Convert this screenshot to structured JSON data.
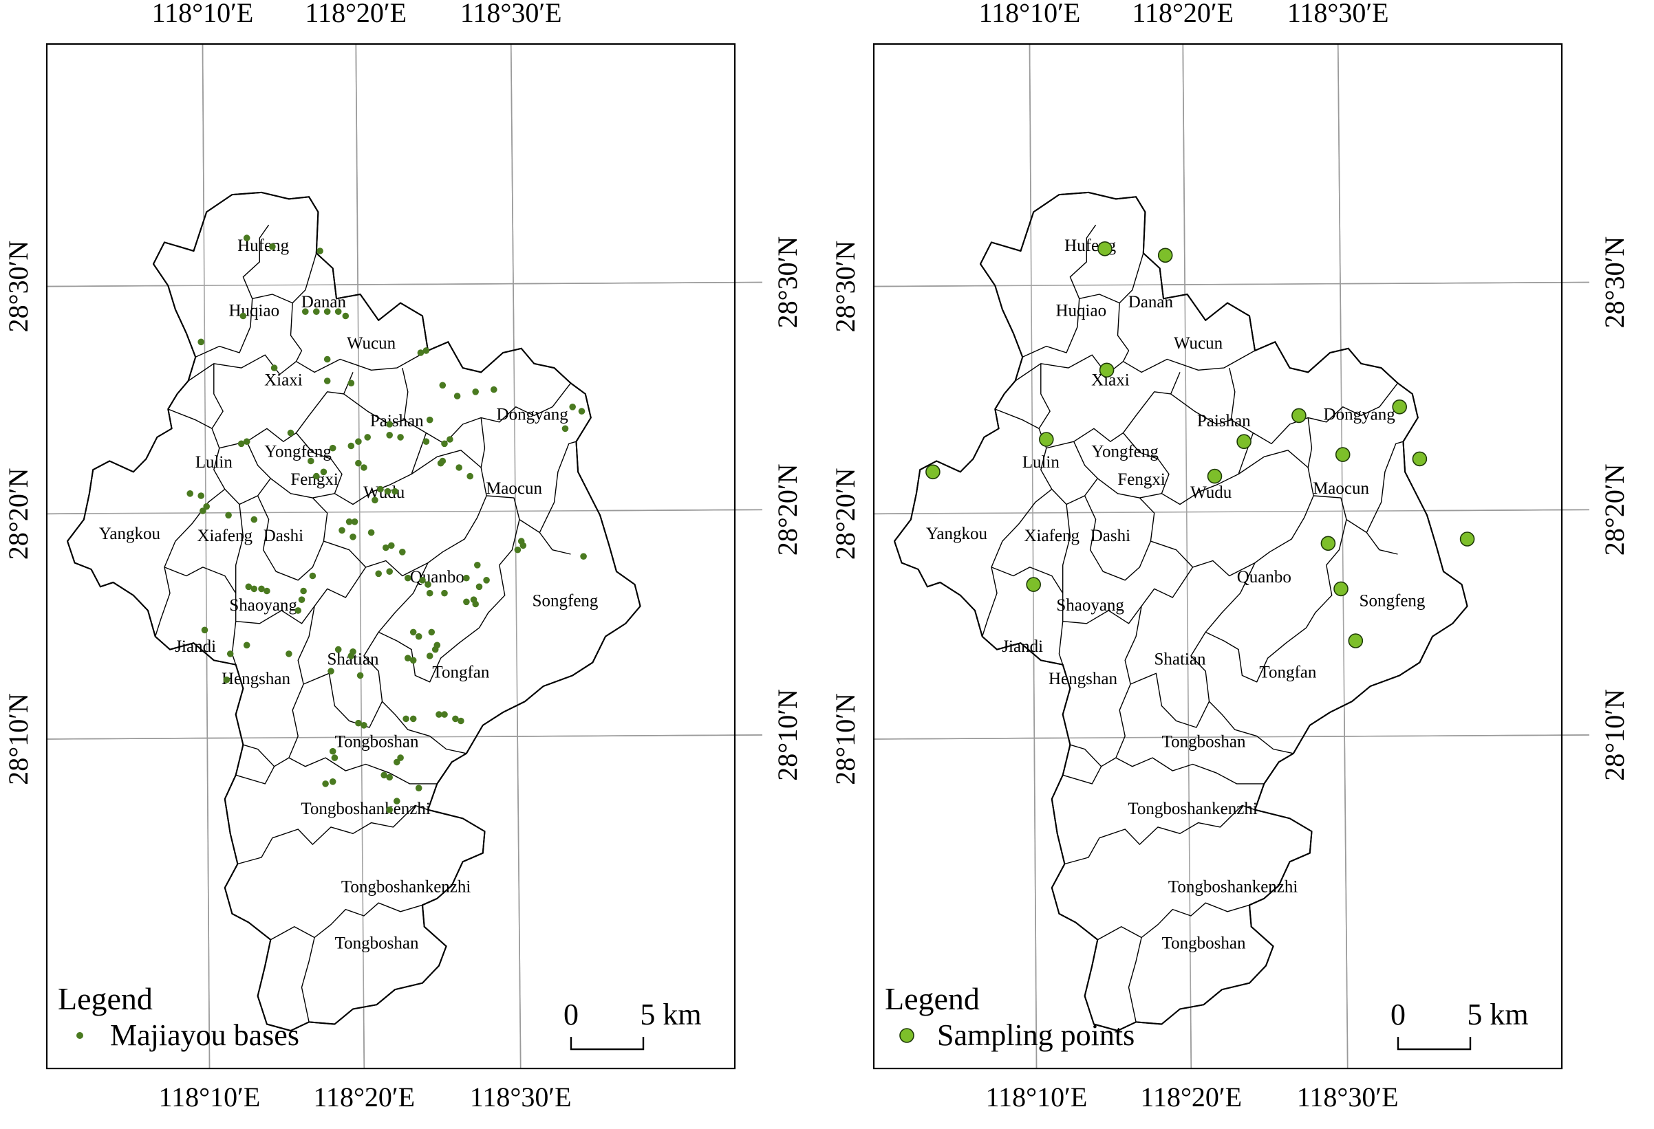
{
  "maps": [
    {
      "id": "left",
      "legend": {
        "title": "Legend",
        "item": "Majiayou bases"
      },
      "symbol": {
        "color": "#4a7a20",
        "radius": 4.8
      },
      "scale": {
        "zero": "0",
        "end": "5 km"
      },
      "ticks": {
        "top": [
          "118°10′E",
          "118°20′E",
          "118°30′E"
        ],
        "bottom": [
          "118°10′E",
          "118°20′E",
          "118°30′E"
        ],
        "left": [
          "28°30′N",
          "28°20′N",
          "28°10′N"
        ],
        "right": [
          "28°30′N",
          "28°20′N",
          "28°10′N"
        ]
      },
      "towns": [
        "Hufeng",
        "Huqiao",
        "Danan",
        "Wucun",
        "Xiaxi",
        "Paishan",
        "Dongyang",
        "Yongfeng",
        "Lulin",
        "Fengxi",
        "Wudu",
        "Maocun",
        "Yangkou",
        "Xiafeng",
        "Dashi",
        "Quanbo",
        "Songfeng",
        "Shaoyang",
        "Jiandi",
        "Shatian",
        "Hengshan",
        "Tongfan",
        "Tongboshan",
        "Tongboshankenzhi",
        "Tongboshankenzhi",
        "Tongboshan"
      ],
      "points": [
        [
          9.8,
          36.6
        ],
        [
          11.2,
          36.2
        ],
        [
          13.8,
          36.0
        ],
        [
          13.0,
          33.2
        ],
        [
          13.6,
          33.2
        ],
        [
          14.2,
          33.2
        ],
        [
          14.8,
          33.2
        ],
        [
          15.2,
          33.0
        ],
        [
          9.6,
          33.0
        ],
        [
          7.3,
          31.8
        ],
        [
          11.3,
          30.6
        ],
        [
          14.2,
          30.0
        ],
        [
          14.2,
          31.0
        ],
        [
          19.3,
          31.3
        ],
        [
          19.6,
          31.4
        ],
        [
          15.5,
          29.9
        ],
        [
          20.5,
          29.8
        ],
        [
          21.3,
          29.3
        ],
        [
          22.3,
          29.5
        ],
        [
          23.3,
          29.6
        ],
        [
          27.6,
          28.8
        ],
        [
          28.1,
          28.6
        ],
        [
          27.2,
          27.8
        ],
        [
          17.6,
          28.0
        ],
        [
          19.8,
          28.2
        ],
        [
          12.2,
          27.6
        ],
        [
          14.5,
          26.9
        ],
        [
          15.5,
          27.0
        ],
        [
          15.9,
          27.2
        ],
        [
          16.4,
          27.4
        ],
        [
          17.6,
          27.5
        ],
        [
          18.2,
          27.4
        ],
        [
          19.6,
          27.2
        ],
        [
          20.6,
          27.1
        ],
        [
          20.9,
          27.3
        ],
        [
          9.5,
          27.1
        ],
        [
          9.8,
          27.2
        ],
        [
          13.3,
          26.3
        ],
        [
          14.0,
          25.8
        ],
        [
          15.9,
          26.2
        ],
        [
          16.2,
          26.0
        ],
        [
          20.4,
          26.2
        ],
        [
          20.5,
          26.3
        ],
        [
          21.4,
          26.0
        ],
        [
          22.0,
          25.6
        ],
        [
          13.6,
          25.6
        ],
        [
          17.1,
          25.0
        ],
        [
          17.5,
          24.9
        ],
        [
          17.9,
          24.9
        ],
        [
          16.8,
          24.5
        ],
        [
          6.7,
          24.8
        ],
        [
          7.3,
          24.7
        ],
        [
          7.6,
          24.2
        ],
        [
          7.4,
          24.0
        ],
        [
          8.8,
          23.8
        ],
        [
          10.2,
          23.6
        ],
        [
          15.4,
          23.5
        ],
        [
          15.7,
          23.5
        ],
        [
          15.0,
          23.1
        ],
        [
          16.6,
          23.0
        ],
        [
          15.6,
          22.8
        ],
        [
          17.4,
          22.3
        ],
        [
          17.7,
          22.4
        ],
        [
          18.3,
          22.1
        ],
        [
          24.8,
          22.6
        ],
        [
          24.6,
          22.2
        ],
        [
          24.9,
          22.4
        ],
        [
          9.9,
          20.5
        ],
        [
          10.2,
          20.4
        ],
        [
          10.6,
          20.4
        ],
        [
          10.9,
          20.3
        ],
        [
          12.9,
          20.3
        ],
        [
          13.4,
          21.0
        ],
        [
          7.5,
          18.5
        ],
        [
          9.8,
          17.8
        ],
        [
          12.8,
          19.9
        ],
        [
          12.6,
          19.4
        ],
        [
          17.0,
          21.1
        ],
        [
          17.6,
          21.2
        ],
        [
          18.6,
          20.9
        ],
        [
          19.4,
          20.8
        ],
        [
          19.7,
          20.6
        ],
        [
          19.8,
          20.2
        ],
        [
          20.6,
          20.2
        ],
        [
          21.8,
          19.8
        ],
        [
          22.3,
          19.7
        ],
        [
          22.2,
          19.9
        ],
        [
          22.5,
          20.5
        ],
        [
          22.9,
          20.8
        ],
        [
          22.4,
          21.5
        ],
        [
          21.8,
          20.9
        ],
        [
          28.2,
          21.9
        ],
        [
          12.1,
          17.4
        ],
        [
          14.8,
          17.6
        ],
        [
          15.5,
          17.3
        ],
        [
          15.6,
          17.5
        ],
        [
          18.6,
          17.2
        ],
        [
          18.9,
          17.1
        ],
        [
          19.8,
          17.3
        ],
        [
          20.1,
          17.6
        ],
        [
          20.2,
          17.8
        ],
        [
          19.9,
          18.4
        ],
        [
          19.2,
          18.2
        ],
        [
          18.9,
          18.4
        ],
        [
          14.4,
          16.6
        ],
        [
          16.0,
          16.4
        ],
        [
          8.9,
          17.4
        ],
        [
          8.7,
          16.2
        ],
        [
          15.9,
          14.2
        ],
        [
          16.2,
          14.1
        ],
        [
          18.5,
          14.4
        ],
        [
          18.9,
          14.4
        ],
        [
          20.3,
          14.6
        ],
        [
          20.6,
          14.6
        ],
        [
          21.2,
          14.4
        ],
        [
          21.5,
          14.3
        ],
        [
          14.5,
          12.9
        ],
        [
          14.6,
          12.6
        ],
        [
          14.1,
          11.4
        ],
        [
          14.5,
          11.5
        ],
        [
          18.2,
          12.6
        ],
        [
          18.0,
          12.4
        ],
        [
          17.3,
          11.8
        ],
        [
          17.6,
          11.7
        ],
        [
          19.2,
          11.2
        ],
        [
          18.0,
          10.6
        ],
        [
          17.6,
          10.2
        ]
      ]
    },
    {
      "id": "right",
      "legend": {
        "title": "Legend",
        "item": "Sampling points"
      },
      "symbol": {
        "color": "#7dbf2a",
        "radius": 10
      },
      "scale": {
        "zero": "0",
        "end": "5 km"
      },
      "ticks": {
        "top": [
          "118°10′E",
          "118°20′E",
          "118°30′E"
        ],
        "bottom": [
          "118°10′E",
          "118°20′E",
          "118°30′E"
        ],
        "left": [
          "28°30′N",
          "28°20′N",
          "28°10′N"
        ],
        "right": [
          "28°30′N",
          "28°20′N",
          "28°10′N"
        ]
      },
      "towns": [
        "Hufeng",
        "Huqiao",
        "Danan",
        "Wucun",
        "Xiaxi",
        "Paishan",
        "Dongyang",
        "Yongfeng",
        "Lulin",
        "Fengxi",
        "Wudu",
        "Maocun",
        "Yangkou",
        "Xiafeng",
        "Dashi",
        "Quanbo",
        "Songfeng",
        "Shaoyang",
        "Jiandi",
        "Shatian",
        "Hengshan",
        "Tongfan",
        "Tongboshan",
        "Tongboshankenzhi",
        "Tongboshankenzhi",
        "Tongboshan"
      ],
      "points": [
        [
          11.5,
          36.1
        ],
        [
          14.8,
          35.8
        ],
        [
          11.6,
          30.5
        ],
        [
          8.3,
          27.3
        ],
        [
          2.1,
          25.8
        ],
        [
          7.6,
          20.6
        ],
        [
          17.5,
          25.6
        ],
        [
          19.1,
          27.2
        ],
        [
          22.1,
          28.4
        ],
        [
          24.5,
          26.6
        ],
        [
          27.6,
          28.8
        ],
        [
          28.7,
          26.4
        ],
        [
          31.3,
          22.7
        ],
        [
          23.7,
          22.5
        ],
        [
          24.4,
          20.4
        ],
        [
          25.2,
          18.0
        ]
      ]
    }
  ]
}
